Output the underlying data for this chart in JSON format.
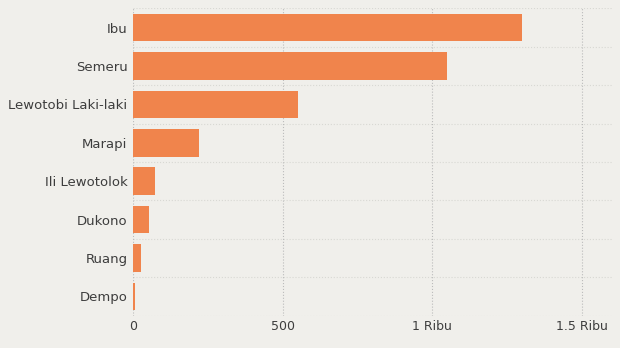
{
  "categories": [
    "Dempo",
    "Ruang",
    "Dukono",
    "Ili Lewotolok",
    "Marapi",
    "Lewotobi Laki-laki",
    "Semeru",
    "Ibu"
  ],
  "values": [
    8,
    28,
    55,
    75,
    220,
    550,
    1050,
    1300
  ],
  "bar_color": "#f0844c",
  "background_color": "#f0efeb",
  "plot_bg_color": "#f0efeb",
  "xlim": [
    0,
    1600
  ],
  "xticks": [
    0,
    500,
    1000,
    1500
  ],
  "xtick_labels": [
    "0",
    "500",
    "1 Ribu",
    "1.5 Ribu"
  ],
  "grid_color": "#bbbbbb",
  "separator_color": "#d8d8d3",
  "text_color": "#3d3d3d",
  "label_fontsize": 9.5,
  "tick_fontsize": 9.0,
  "bar_height": 0.72
}
